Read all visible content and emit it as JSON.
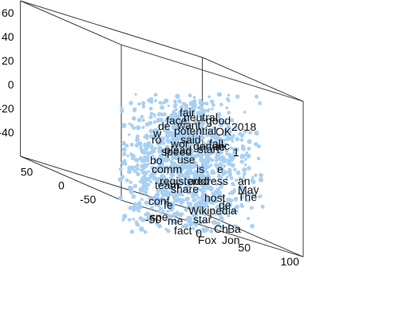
{
  "chart_data": {
    "type": "scatter",
    "dimensions": 3,
    "title": "",
    "xlabel": "",
    "ylabel": "",
    "zlabel": "",
    "grid": false,
    "marker_color": "#a9d0f2",
    "xlim": [
      -80,
      120
    ],
    "ylim": [
      -80,
      80
    ],
    "zlim": [
      -60,
      70
    ],
    "x_ticks": [
      -50,
      0,
      50,
      100
    ],
    "y_ticks": [
      -50,
      0,
      50
    ],
    "z_ticks": [
      -40,
      -20,
      0,
      20,
      40,
      60
    ],
    "x_tick_labels": [
      "-50",
      "0",
      "50",
      "100"
    ],
    "y_tick_labels": [
      "-50",
      "0",
      "50"
    ],
    "z_tick_labels": [
      "-40",
      "-20",
      "0",
      "20",
      "40",
      "60"
    ],
    "labeled_points": [
      {
        "text": "fair",
        "x": -5,
        "y": 0,
        "z": 44
      },
      {
        "text": "neutral",
        "x": 0,
        "y": 0,
        "z": 38
      },
      {
        "text": "face",
        "x": -22,
        "y": 0,
        "z": 34
      },
      {
        "text": "good",
        "x": 28,
        "y": 0,
        "z": 34
      },
      {
        "text": "want",
        "x": -8,
        "y": 0,
        "z": 28
      },
      {
        "text": "de",
        "x": -32,
        "y": 0,
        "z": 27
      },
      {
        "text": "2018",
        "x": 60,
        "y": 0,
        "z": 26
      },
      {
        "text": "potential",
        "x": -12,
        "y": 0,
        "z": 21
      },
      {
        "text": "OK",
        "x": 40,
        "y": 0,
        "z": 20
      },
      {
        "text": "w",
        "x": -38,
        "y": 0,
        "z": 18
      },
      {
        "text": "said",
        "x": -4,
        "y": 0,
        "z": 10
      },
      {
        "text": "ro",
        "x": -40,
        "y": 0,
        "z": 10
      },
      {
        "text": "wor",
        "x": -16,
        "y": 0,
        "z": 5
      },
      {
        "text": "fall",
        "x": 32,
        "y": 0,
        "z": 5
      },
      {
        "text": "generic",
        "x": 12,
        "y": 0,
        "z": 2
      },
      {
        "text": "re",
        "x": 40,
        "y": 0,
        "z": 1
      },
      {
        "text": "start",
        "x": 18,
        "y": 0,
        "z": -2
      },
      {
        "text": "plead",
        "x": -24,
        "y": 0,
        "z": -3
      },
      {
        "text": "speed",
        "x": -28,
        "y": 0,
        "z": -5
      },
      {
        "text": "1",
        "x": 62,
        "y": 0,
        "z": -6
      },
      {
        "text": "use",
        "x": -8,
        "y": 0,
        "z": -15
      },
      {
        "text": "bo",
        "x": -42,
        "y": 0,
        "z": -16
      },
      {
        "text": "comm",
        "x": -40,
        "y": 0,
        "z": -27
      },
      {
        "text": "is",
        "x": 16,
        "y": 0,
        "z": -27
      },
      {
        "text": "e",
        "x": 42,
        "y": 0,
        "z": -27
      },
      {
        "text": "registered",
        "x": -30,
        "y": 0,
        "z": -42
      },
      {
        "text": "address",
        "x": 6,
        "y": 0,
        "z": -42
      },
      {
        "text": "team",
        "x": -36,
        "y": 0,
        "z": -47
      },
      {
        "text": "share",
        "x": -16,
        "y": 0,
        "z": -52
      },
      {
        "text": "an",
        "x": 68,
        "y": 0,
        "z": -42
      },
      {
        "text": "May",
        "x": 68,
        "y": 0,
        "z": -53
      },
      {
        "text": "host",
        "x": 26,
        "y": 0,
        "z": -63
      },
      {
        "text": "The",
        "x": 68,
        "y": 0,
        "z": -62
      },
      {
        "text": "conf",
        "x": -44,
        "y": 0,
        "z": -67
      },
      {
        "text": "fe",
        "x": -25,
        "y": 0,
        "z": -72
      },
      {
        "text": "de",
        "x": 44,
        "y": 0,
        "z": -72
      },
      {
        "text": "Wikipedia",
        "x": 6,
        "y": 0,
        "z": -79
      },
      {
        "text": "spe",
        "x": -42,
        "y": 0,
        "z": -87
      },
      {
        "text": "star",
        "x": 12,
        "y": 0,
        "z": -90
      },
      {
        "text": "me",
        "x": -20,
        "y": 0,
        "z": -92
      },
      {
        "text": "Ch",
        "x": 38,
        "y": 0,
        "z": -102
      },
      {
        "text": "B.",
        "x": 55,
        "y": 0,
        "z": -102
      },
      {
        "text": "a",
        "x": 64,
        "y": 0,
        "z": -102
      },
      {
        "text": "fact",
        "x": -12,
        "y": 0,
        "z": -104
      },
      {
        "text": "Fox",
        "x": 18,
        "y": 0,
        "z": -116
      },
      {
        "text": "Jon",
        "x": 48,
        "y": 0,
        "z": -116
      }
    ]
  }
}
